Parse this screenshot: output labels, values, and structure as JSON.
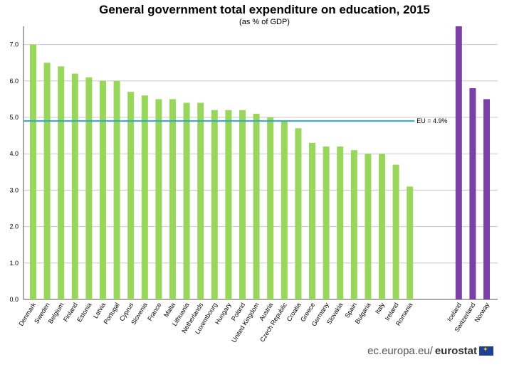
{
  "chart_data": {
    "type": "bar",
    "title": "General government total expenditure on education, 2015",
    "subtitle": "(as % of GDP)",
    "ylim": [
      0,
      7.5
    ],
    "yticks": [
      "0.0",
      "1.0",
      "2.0",
      "3.0",
      "4.0",
      "5.0",
      "6.0",
      "7.0"
    ],
    "grid": true,
    "categories": [
      "Denmark",
      "Sweden",
      "Belgium",
      "Finland",
      "Estonia",
      "Latvia",
      "Portugal",
      "Cyprus",
      "Slovenia",
      "France",
      "Malta",
      "Lithuania",
      "Netherlands",
      "Luxembourg",
      "Hungary",
      "Poland",
      "United Kingdom",
      "Austria",
      "Czech Republic",
      "Croatia",
      "Greece",
      "Germany",
      "Slovakia",
      "Spain",
      "Bulgaria",
      "Italy",
      "Ireland",
      "Romania",
      "Iceland",
      "Switzerland",
      "Norway"
    ],
    "values": [
      7.0,
      6.5,
      6.4,
      6.2,
      6.1,
      6.0,
      6.0,
      5.7,
      5.6,
      5.5,
      5.5,
      5.4,
      5.4,
      5.2,
      5.2,
      5.2,
      5.1,
      5.0,
      4.9,
      4.7,
      4.3,
      4.2,
      4.2,
      4.1,
      4.0,
      4.0,
      3.7,
      3.1,
      7.5,
      5.8,
      5.5
    ],
    "groups": [
      "EU",
      "EU",
      "EU",
      "EU",
      "EU",
      "EU",
      "EU",
      "EU",
      "EU",
      "EU",
      "EU",
      "EU",
      "EU",
      "EU",
      "EU",
      "EU",
      "EU",
      "EU",
      "EU",
      "EU",
      "EU",
      "EU",
      "EU",
      "EU",
      "EU",
      "EU",
      "EU",
      "EU",
      "EFTA",
      "EFTA",
      "EFTA"
    ],
    "colors": {
      "EU": "#99d65c",
      "EFTA": "#7b3fa8",
      "reference": "#2fa6d6"
    },
    "reference_line": {
      "value": 4.9,
      "label": "EU = 4.9%"
    }
  },
  "footer": {
    "domain": "ec.europa.eu/",
    "brand": "eurostat"
  }
}
